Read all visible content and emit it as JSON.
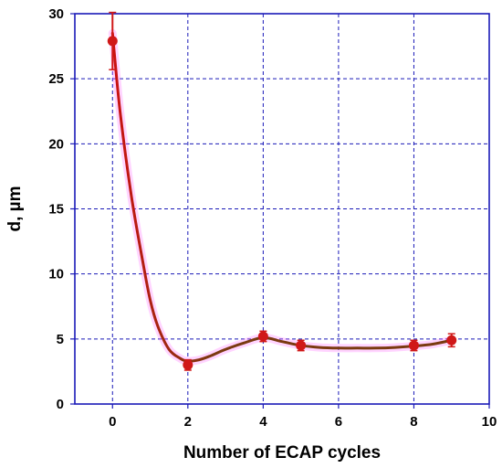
{
  "chart_data": {
    "type": "scatter",
    "title": "",
    "xlabel": "Number of  ECAP cycles",
    "ylabel": "d, µm",
    "xlim": [
      -1,
      10
    ],
    "ylim": [
      0,
      30
    ],
    "x_ticks": [
      0,
      2,
      4,
      6,
      8,
      10
    ],
    "y_ticks": [
      0,
      5,
      10,
      15,
      20,
      25,
      30
    ],
    "x_tick_labels": [
      "0",
      "2",
      "4",
      "6",
      "8",
      "10"
    ],
    "y_tick_labels": [
      "0",
      "5",
      "10",
      "15",
      "20",
      "25",
      "30"
    ],
    "grid": true,
    "series": [
      {
        "x": [
          0,
          2,
          4,
          5,
          8,
          9
        ],
        "y": [
          27.9,
          3.0,
          5.2,
          4.5,
          4.5,
          4.9
        ],
        "error": [
          2.2,
          0.4,
          0.4,
          0.4,
          0.4,
          0.5
        ]
      }
    ],
    "trend_curve": {
      "x": [
        0,
        0.2,
        0.5,
        0.8,
        1.0,
        1.2,
        1.5,
        1.8,
        2.0,
        2.3,
        2.6,
        3.0,
        3.5,
        4.0,
        4.5,
        5.0,
        5.5,
        6.0,
        6.5,
        7.0,
        7.5,
        8.0,
        8.5,
        9.0
      ],
      "y": [
        28.5,
        22.5,
        16.0,
        11.0,
        8.0,
        6.0,
        4.2,
        3.5,
        3.3,
        3.4,
        3.7,
        4.2,
        4.7,
        5.1,
        4.8,
        4.5,
        4.35,
        4.3,
        4.3,
        4.3,
        4.35,
        4.45,
        4.6,
        4.9
      ]
    },
    "colors": {
      "grid": "#1a1ab8",
      "axis": "#1a1ab8",
      "marker": "#d01818",
      "curve_start": "#cc1111",
      "curve_end": "#7a3a10",
      "glow": "#ff66ff"
    }
  }
}
